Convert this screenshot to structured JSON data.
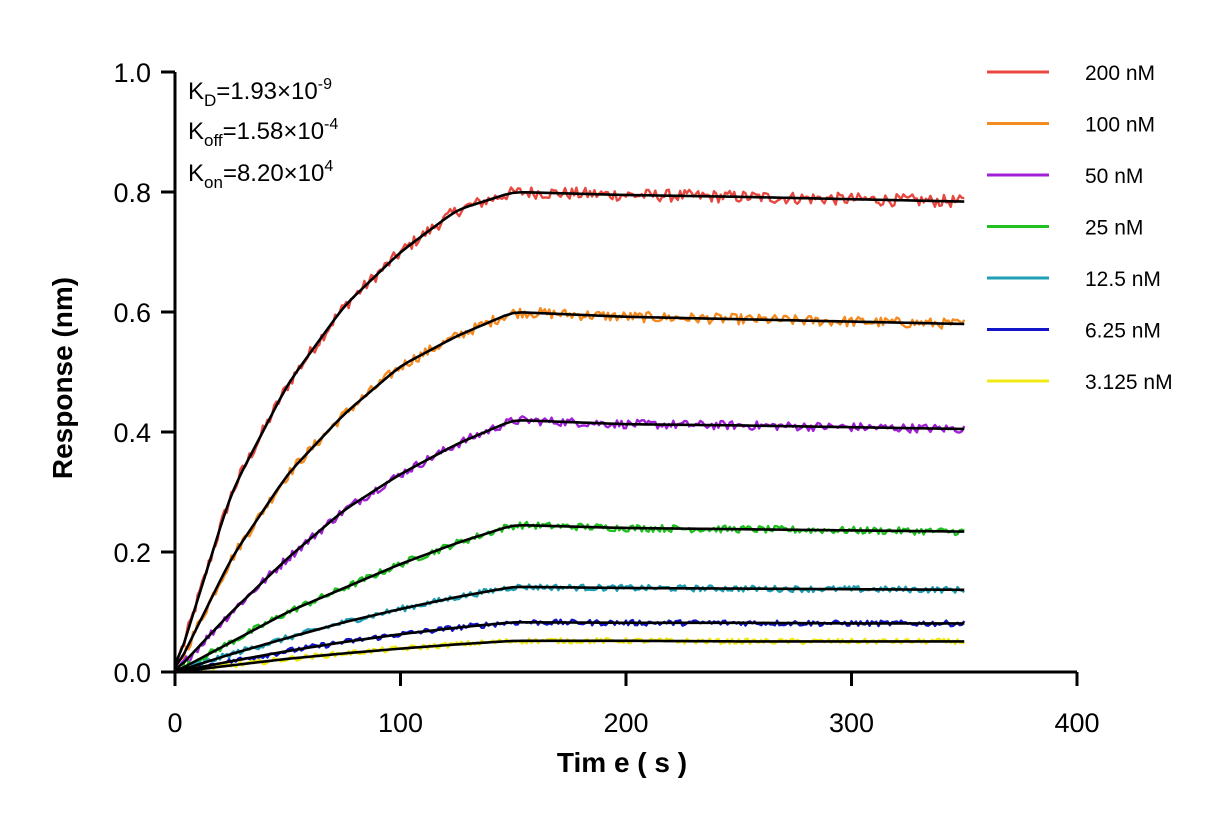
{
  "chart_data": {
    "type": "line",
    "xlabel": "Tim e ( s )",
    "ylabel": "Response (nm)",
    "xlim": [
      0,
      400
    ],
    "ylim": [
      0,
      1.0
    ],
    "x_ticks": [
      "0",
      "100",
      "200",
      "300",
      "400"
    ],
    "y_ticks": [
      "0.0",
      "0.2",
      "0.4",
      "0.6",
      "0.8",
      "1.0"
    ],
    "grid": false,
    "legend_position": "top-right",
    "annotations": {
      "kd": {
        "base": "K",
        "sub": "D",
        "mant": "=1.93×10",
        "exp": "-9"
      },
      "koff": {
        "base": "K",
        "sub": "off",
        "mant": "=1.58×10",
        "exp": "-4"
      },
      "kon": {
        "base": "K",
        "sub": "on",
        "mant": "=8.20×10",
        "exp": "4"
      }
    },
    "association_end": 150,
    "end_time": 350,
    "fit_color": "#000000",
    "series": [
      {
        "name": "200 nM",
        "color": "#e8483f",
        "values_x": [
          0,
          25,
          50,
          75,
          100,
          125,
          150,
          200,
          250,
          300,
          350
        ],
        "values_y": [
          0.0,
          0.3,
          0.48,
          0.61,
          0.7,
          0.77,
          0.8,
          0.795,
          0.792,
          0.788,
          0.784
        ]
      },
      {
        "name": "100 nM",
        "color": "#f58a1f",
        "values_x": [
          0,
          25,
          50,
          75,
          100,
          125,
          150,
          200,
          250,
          300,
          350
        ],
        "values_y": [
          0.0,
          0.19,
          0.33,
          0.43,
          0.51,
          0.56,
          0.6,
          0.592,
          0.588,
          0.584,
          0.58
        ]
      },
      {
        "name": "50 nM",
        "color": "#a11fd6",
        "values_x": [
          0,
          25,
          50,
          75,
          100,
          125,
          150,
          200,
          250,
          300,
          350
        ],
        "values_y": [
          0.0,
          0.1,
          0.19,
          0.27,
          0.33,
          0.38,
          0.42,
          0.413,
          0.411,
          0.408,
          0.405
        ]
      },
      {
        "name": "25 nM",
        "color": "#1fc01f",
        "values_x": [
          0,
          25,
          50,
          75,
          100,
          125,
          150,
          200,
          250,
          300,
          350
        ],
        "values_y": [
          0.0,
          0.05,
          0.1,
          0.14,
          0.18,
          0.215,
          0.245,
          0.24,
          0.238,
          0.236,
          0.234
        ]
      },
      {
        "name": "12.5 nM",
        "color": "#1f9fb3",
        "values_x": [
          0,
          25,
          50,
          75,
          100,
          125,
          150,
          200,
          250,
          300,
          350
        ],
        "values_y": [
          0.0,
          0.03,
          0.057,
          0.083,
          0.105,
          0.125,
          0.142,
          0.14,
          0.139,
          0.138,
          0.137
        ]
      },
      {
        "name": "6.25 nM",
        "color": "#1414c8",
        "values_x": [
          0,
          25,
          50,
          75,
          100,
          125,
          150,
          200,
          250,
          300,
          350
        ],
        "values_y": [
          0.0,
          0.018,
          0.035,
          0.05,
          0.063,
          0.074,
          0.083,
          0.082,
          0.082,
          0.081,
          0.081
        ]
      },
      {
        "name": "3.125 nM",
        "color": "#f0ea14",
        "values_x": [
          0,
          25,
          50,
          75,
          100,
          125,
          150,
          200,
          250,
          300,
          350
        ],
        "values_y": [
          0.0,
          0.011,
          0.022,
          0.031,
          0.039,
          0.046,
          0.052,
          0.052,
          0.051,
          0.051,
          0.051
        ]
      }
    ]
  }
}
